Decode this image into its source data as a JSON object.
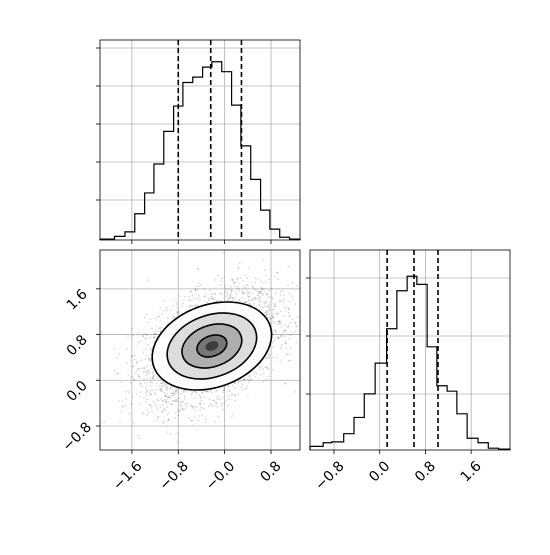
{
  "chart_data": [
    {
      "type": "histogram",
      "panel": "top-left",
      "parameter_index": 0,
      "x_ticks": [],
      "y_ticks": [],
      "xlim": [
        -2.15,
        1.3
      ],
      "grid": true,
      "bins_x_left": [
        -2.15,
        -1.9,
        -1.72,
        -1.55,
        -1.38,
        -1.22,
        -1.05,
        -0.88,
        -0.72,
        -0.55,
        -0.38,
        -0.22,
        -0.05,
        0.12,
        0.28,
        0.45,
        0.62,
        0.78,
        0.95,
        1.12
      ],
      "bins_x_right": [
        -1.9,
        -1.72,
        -1.55,
        -1.38,
        -1.22,
        -1.05,
        -0.88,
        -0.72,
        -0.55,
        -0.38,
        -0.22,
        -0.05,
        0.12,
        0.28,
        0.45,
        0.62,
        0.78,
        0.95,
        1.12,
        1.3
      ],
      "counts": [
        0.005,
        0.02,
        0.045,
        0.145,
        0.26,
        0.42,
        0.6,
        0.74,
        0.87,
        0.9,
        0.955,
        0.985,
        0.93,
        0.745,
        0.52,
        0.335,
        0.165,
        0.06,
        0.015,
        0.005
      ],
      "quantile_lines": [
        -0.8,
        -0.24,
        0.29
      ]
    },
    {
      "type": "histogram",
      "panel": "bottom-right",
      "parameter_index": 1,
      "x_ticks": [
        "−0.8",
        "0.0",
        "0.8",
        "1.6"
      ],
      "x_tick_values": [
        -0.8,
        0.0,
        0.8,
        1.6
      ],
      "y_ticks": [],
      "xlim": [
        -1.22,
        2.28
      ],
      "grid": true,
      "bins_x_left": [
        -1.22,
        -0.99,
        -0.84,
        -0.63,
        -0.45,
        -0.27,
        -0.08,
        0.12,
        0.3,
        0.48,
        0.65,
        0.83,
        1.0,
        1.18,
        1.35,
        1.53,
        1.72,
        1.9,
        2.08
      ],
      "bins_x_right": [
        -0.99,
        -0.84,
        -0.63,
        -0.45,
        -0.27,
        -0.08,
        0.12,
        0.3,
        0.48,
        0.65,
        0.83,
        1.0,
        1.18,
        1.35,
        1.53,
        1.72,
        1.9,
        2.08,
        2.28
      ],
      "counts": [
        0.02,
        0.04,
        0.045,
        0.09,
        0.18,
        0.31,
        0.48,
        0.67,
        0.88,
        0.96,
        0.915,
        0.57,
        0.355,
        0.325,
        0.2,
        0.065,
        0.04,
        0.01,
        0.005
      ],
      "quantile_lines": [
        0.13,
        0.6,
        1.02
      ]
    },
    {
      "type": "scatter",
      "panel": "bottom-left",
      "style": "2d histogram with scatter points and density contours",
      "x_ticks": [
        "−1.6",
        "−0.8",
        "−0.0",
        "0.8"
      ],
      "x_tick_values": [
        -1.6,
        -0.8,
        0.0,
        0.8
      ],
      "y_ticks": [
        "1.6",
        "0.8",
        "0.0",
        "−0.8"
      ],
      "y_tick_values": [
        1.6,
        0.8,
        0.0,
        -0.8
      ],
      "xlim": [
        -2.15,
        1.3
      ],
      "ylim": [
        -1.22,
        2.28
      ],
      "grid": true,
      "point_count": 4000,
      "correlation": 0.42,
      "center": {
        "x": -0.22,
        "y": 0.6
      },
      "sigma": {
        "x": 0.56,
        "y": 0.48
      },
      "contour_levels_sigma": [
        0.5,
        1.0,
        1.5,
        2.0
      ],
      "contour_fill_colors": [
        "#ffffff",
        "#d9d9d9",
        "#a9a9a9",
        "#707070",
        "#3d3d3d"
      ],
      "point_color": "#000000"
    }
  ]
}
